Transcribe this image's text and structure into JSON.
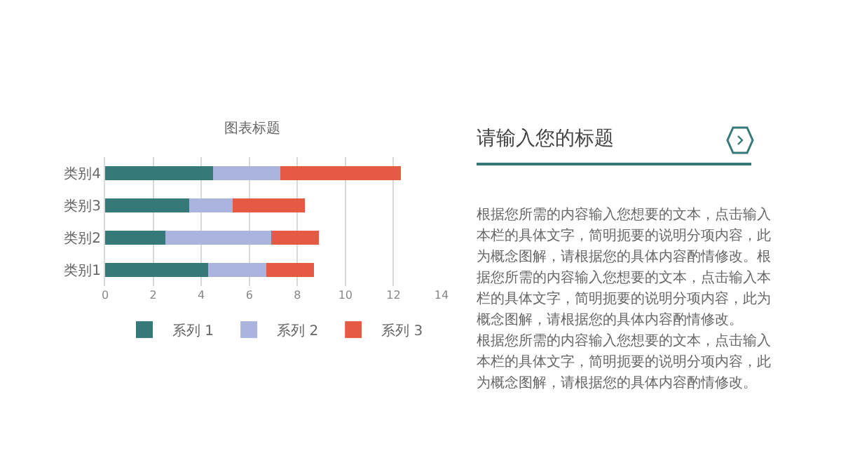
{
  "chart_data": [
    {
      "type": "bar",
      "title": "图表标题",
      "orientation": "horizontal",
      "stacked": true,
      "categories": [
        "类别4",
        "类别3",
        "类别2",
        "类别1"
      ],
      "series": [
        {
          "name": "系列 1",
          "color": "#357a78",
          "values": [
            4.5,
            3.5,
            2.5,
            4.3
          ]
        },
        {
          "name": "系列 2",
          "color": "#aab4de",
          "values": [
            2.8,
            1.8,
            4.4,
            2.4
          ]
        },
        {
          "name": "系列 3",
          "color": "#e55a43",
          "values": [
            5,
            3,
            2,
            2
          ]
        }
      ],
      "xlim": [
        0,
        14
      ],
      "xticks": [
        0,
        2,
        4,
        6,
        8,
        10,
        12,
        14
      ],
      "grid": "x",
      "legend": "bottom"
    },
    {
      "type": "other",
      "title": "请输入您的标题",
      "annotations": [
        "根据您所需的内容输入您想要的文本，点击输入本栏的具体文字，简明扼要的说明分项内容，此为概念图解，请根据您的具体内容酌情修改。根据您所需的内容输入您想要的文本，点击输入本栏的具体文字，简明扼要的说明分项内容，此为概念图解，请根据您的具体内容酌情修改。",
        "根据您所需的内容输入您想要的文本，点击输入本栏的具体文字，简明扼要的说明分项内容，此为概念图解，请根据您的具体内容酌情修改。"
      ]
    }
  ]
}
